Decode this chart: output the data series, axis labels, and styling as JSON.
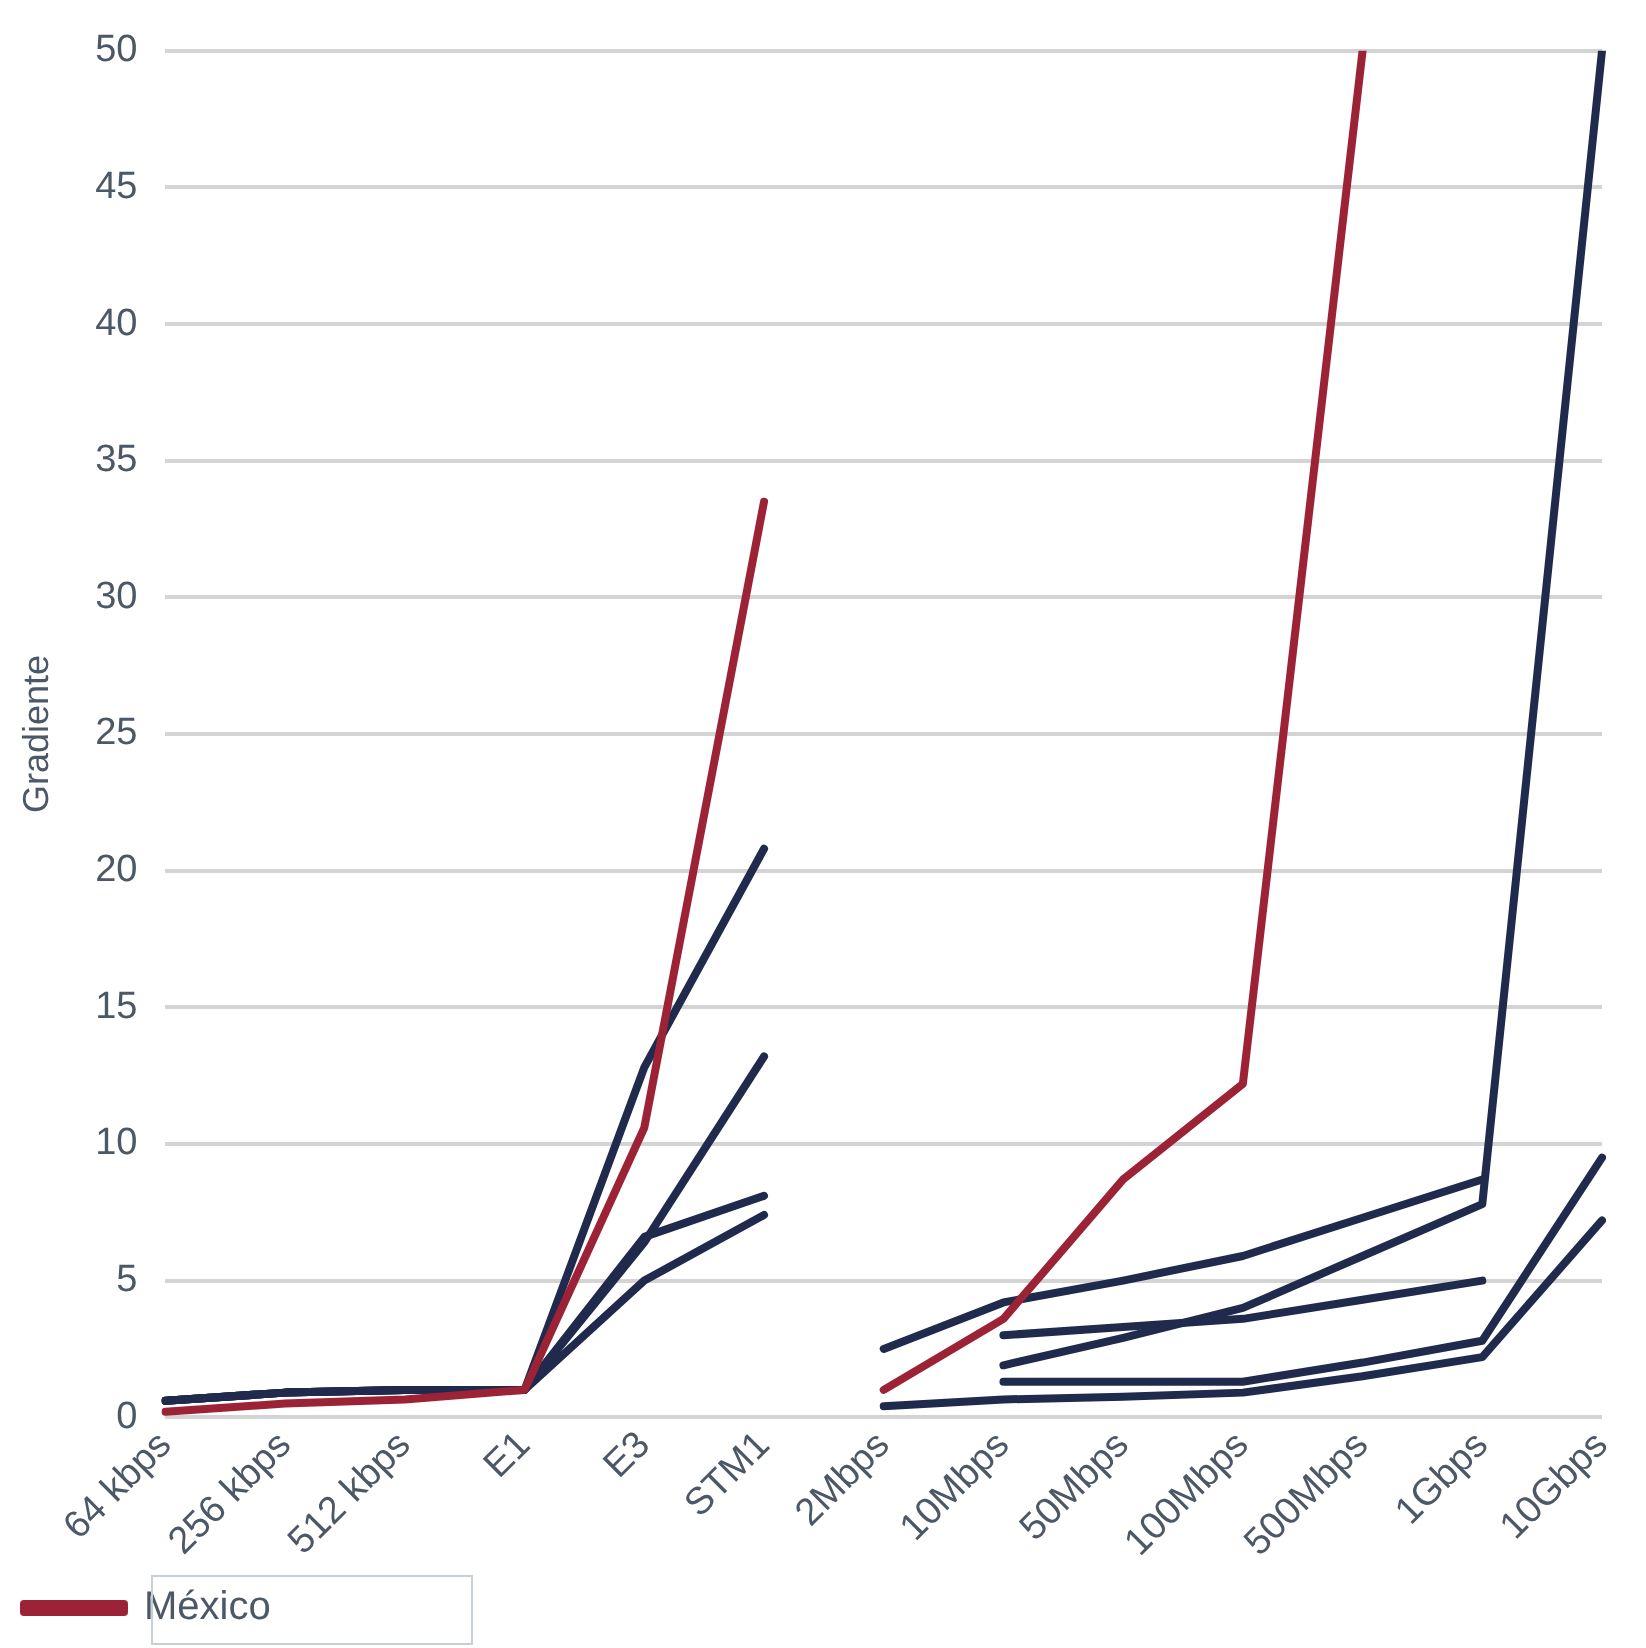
{
  "chart_data": {
    "type": "line",
    "ylabel": "Gradiente",
    "categories": [
      "64 kbps",
      "256 kbps",
      "512 kbps",
      "E1",
      "E3",
      "STM1",
      "2Mbps",
      "10Mbps",
      "50Mbps",
      "100Mbps",
      "500Mbps",
      "1Gbps",
      "10Gbps"
    ],
    "series": [
      {
        "name": "México",
        "color": "#9b2335",
        "values": [
          0.2,
          0.5,
          0.65,
          1.0,
          10.6,
          33.5,
          null,
          null,
          null,
          null,
          null,
          null,
          null
        ]
      },
      {
        "color": "#9b2335",
        "values": [
          null,
          null,
          null,
          null,
          null,
          null,
          1.0,
          3.6,
          8.7,
          12.2,
          50,
          null,
          null
        ]
      },
      {
        "color": "#1f2a4d",
        "values": [
          0.6,
          0.9,
          1.0,
          1.0,
          12.8,
          20.8,
          null,
          null,
          null,
          null,
          null,
          null,
          null
        ]
      },
      {
        "color": "#1f2a4d",
        "values": [
          0.6,
          0.9,
          1.0,
          1.0,
          6.4,
          13.2,
          null,
          null,
          null,
          null,
          null,
          null,
          null
        ]
      },
      {
        "color": "#1f2a4d",
        "values": [
          0.6,
          0.9,
          1.0,
          1.0,
          6.6,
          8.1,
          null,
          null,
          null,
          null,
          null,
          null,
          null
        ]
      },
      {
        "color": "#1f2a4d",
        "values": [
          0.6,
          0.9,
          1.0,
          1.0,
          5.0,
          7.4,
          null,
          null,
          null,
          null,
          null,
          null,
          null
        ]
      },
      {
        "color": "#1f2a4d",
        "values": [
          null,
          null,
          null,
          null,
          null,
          null,
          2.5,
          4.2,
          5.0,
          5.9,
          7.3,
          8.7,
          null
        ]
      },
      {
        "color": "#1f2a4d",
        "values": [
          null,
          null,
          null,
          null,
          null,
          null,
          null,
          1.9,
          2.9,
          4.0,
          5.9,
          7.8,
          50
        ]
      },
      {
        "color": "#1f2a4d",
        "values": [
          null,
          null,
          null,
          null,
          null,
          null,
          null,
          3.0,
          3.3,
          3.6,
          4.3,
          5.0,
          null
        ]
      },
      {
        "color": "#1f2a4d",
        "values": [
          null,
          null,
          null,
          null,
          null,
          null,
          null,
          1.3,
          1.3,
          1.3,
          2.0,
          2.8,
          9.5
        ]
      },
      {
        "color": "#1f2a4d",
        "values": [
          null,
          null,
          null,
          null,
          null,
          null,
          0.4,
          0.65,
          0.75,
          0.9,
          1.5,
          2.2,
          7.2
        ]
      }
    ],
    "ylim": [
      0,
      50
    ],
    "yticks": [
      0,
      5,
      10,
      15,
      20,
      25,
      30,
      35,
      40,
      45,
      50
    ],
    "grid": "y",
    "legend": "bottom left",
    "marker": "none",
    "line_style": "solid"
  }
}
